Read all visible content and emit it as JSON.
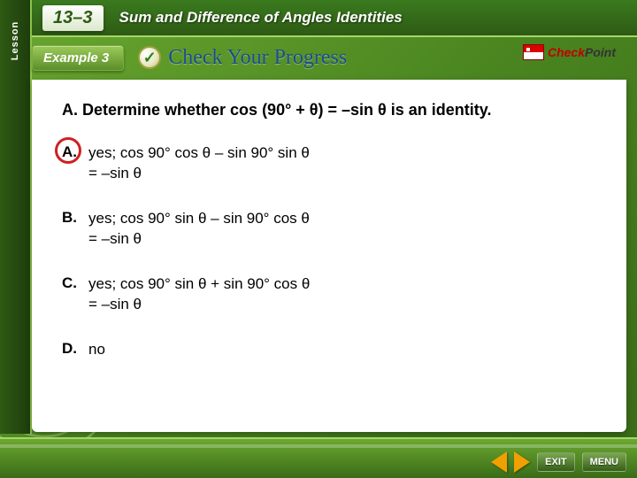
{
  "colors": {
    "page_bg_start": "#6ba830",
    "page_bg_end": "#3a6b18",
    "accent_green_light": "#a5d66a",
    "card_bg": "#ffffff",
    "text": "#000000",
    "correct_ring": "#d02020",
    "nav_arrow": "#f0a000",
    "checkpoint_red": "#c00000"
  },
  "lesson_tab": {
    "label": "Lesson"
  },
  "header": {
    "chapter": "13–3",
    "title": "Sum and Difference of Angles Identities"
  },
  "example_bar": {
    "badge": "Example 3",
    "check_text": "Check Your Progress",
    "checkpoint_prefix": "Check",
    "checkpoint_suffix": "Point"
  },
  "question": "A.  Determine whether cos (90° + θ) = –sin θ is an identity.",
  "options": [
    {
      "letter": "A.",
      "text": "yes; cos 90° cos θ – sin 90° sin θ\n= –sin θ",
      "correct": true
    },
    {
      "letter": "B.",
      "text": "yes; cos 90° sin θ – sin 90° cos θ\n= –sin θ",
      "correct": false
    },
    {
      "letter": "C.",
      "text": "yes; cos 90° sin θ + sin 90° cos θ\n= –sin θ",
      "correct": false
    },
    {
      "letter": "D.",
      "text": "no",
      "correct": false
    }
  ],
  "nav": {
    "exit": "EXIT",
    "menu": "MENU"
  }
}
